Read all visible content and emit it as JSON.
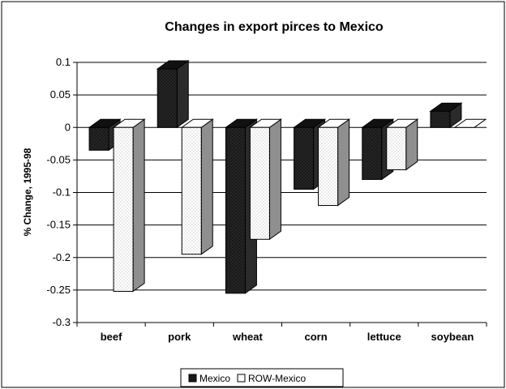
{
  "chart_data": {
    "type": "bar",
    "title": "Changes in export pirces to Mexico",
    "xlabel": "",
    "ylabel": "% Change, 1995-98",
    "ylim": [
      -0.3,
      0.1
    ],
    "yticks": [
      "0.1",
      "0.05",
      "0",
      "-0.05",
      "-0.1",
      "-0.15",
      "-0.2",
      "-0.25",
      "-0.3"
    ],
    "ytick_values": [
      0.1,
      0.05,
      0,
      -0.05,
      -0.1,
      -0.15,
      -0.2,
      -0.25,
      -0.3
    ],
    "categories": [
      "beef",
      "pork",
      "wheat",
      "corn",
      "lettuce",
      "soybean"
    ],
    "series": [
      {
        "name": "Mexico",
        "values": [
          -0.035,
          0.09,
          -0.255,
          -0.095,
          -0.08,
          0.025
        ],
        "color": "#1a1a1a"
      },
      {
        "name": "ROW-Mexico",
        "values": [
          -0.252,
          -0.195,
          -0.172,
          -0.12,
          -0.065,
          0.0
        ],
        "color": "#ffffff"
      }
    ],
    "grid": true,
    "legend": "bottom",
    "three_d": true
  }
}
